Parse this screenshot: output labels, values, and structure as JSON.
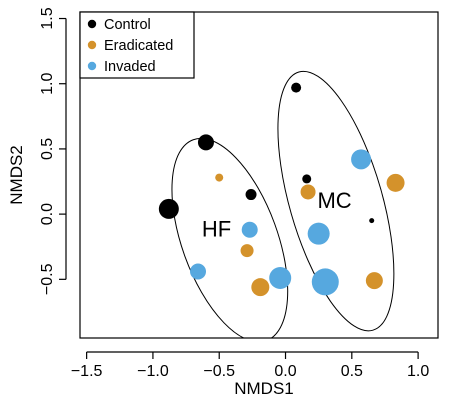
{
  "chart_data": {
    "type": "scatter",
    "xlabel": "NMDS1",
    "ylabel": "NMDS2",
    "xlim": [
      -1.55,
      1.15
    ],
    "ylim": [
      -0.95,
      1.55
    ],
    "xticks": [
      "−1.5",
      "−1.0",
      "−0.5",
      "0.0",
      "0.5",
      "1.0"
    ],
    "xtick_values": [
      -1.5,
      -1.0,
      -0.5,
      0.0,
      0.5,
      1.0
    ],
    "yticks": [
      "−0.5",
      "0.0",
      "0.5",
      "1.0",
      "1.5"
    ],
    "ytick_values": [
      -0.5,
      0.0,
      0.5,
      1.0,
      1.5
    ],
    "legend_position": "top-left",
    "colors": {
      "Control": "#000000",
      "Eradicated": "#d4922b",
      "Invaded": "#56a8df"
    },
    "series": [
      {
        "name": "Control",
        "points": [
          {
            "x": -0.88,
            "y": 0.04,
            "size": 1.0
          },
          {
            "x": -0.6,
            "y": 0.55,
            "size": 0.8
          },
          {
            "x": -0.26,
            "y": 0.15,
            "size": 0.55
          },
          {
            "x": 0.08,
            "y": 0.97,
            "size": 0.5
          },
          {
            "x": 0.16,
            "y": 0.27,
            "size": 0.45
          },
          {
            "x": 0.65,
            "y": -0.05,
            "size": 0.25
          }
        ]
      },
      {
        "name": "Eradicated",
        "points": [
          {
            "x": -0.5,
            "y": 0.28,
            "size": 0.4
          },
          {
            "x": -0.29,
            "y": -0.28,
            "size": 0.65
          },
          {
            "x": -0.19,
            "y": -0.56,
            "size": 0.9
          },
          {
            "x": 0.17,
            "y": 0.17,
            "size": 0.75
          },
          {
            "x": 0.67,
            "y": -0.51,
            "size": 0.85
          },
          {
            "x": 0.83,
            "y": 0.24,
            "size": 0.9
          }
        ]
      },
      {
        "name": "Invaded",
        "points": [
          {
            "x": -0.66,
            "y": -0.44,
            "size": 0.8
          },
          {
            "x": -0.27,
            "y": -0.12,
            "size": 0.8
          },
          {
            "x": -0.04,
            "y": -0.49,
            "size": 1.1
          },
          {
            "x": 0.25,
            "y": -0.15,
            "size": 1.1
          },
          {
            "x": 0.3,
            "y": -0.52,
            "size": 1.35
          },
          {
            "x": 0.57,
            "y": 0.42,
            "size": 1.0
          }
        ]
      }
    ],
    "ellipses": [
      {
        "label": "HF",
        "center": [
          -0.42,
          -0.2
        ],
        "semi_axes": [
          0.36,
          0.82
        ],
        "angle_deg": -20,
        "label_at": [
          -0.52,
          -0.11
        ]
      },
      {
        "label": "MC",
        "center": [
          0.38,
          0.1
        ],
        "semi_axes": [
          0.35,
          1.03
        ],
        "angle_deg": -16,
        "label_at": [
          0.37,
          0.11
        ]
      }
    ]
  }
}
